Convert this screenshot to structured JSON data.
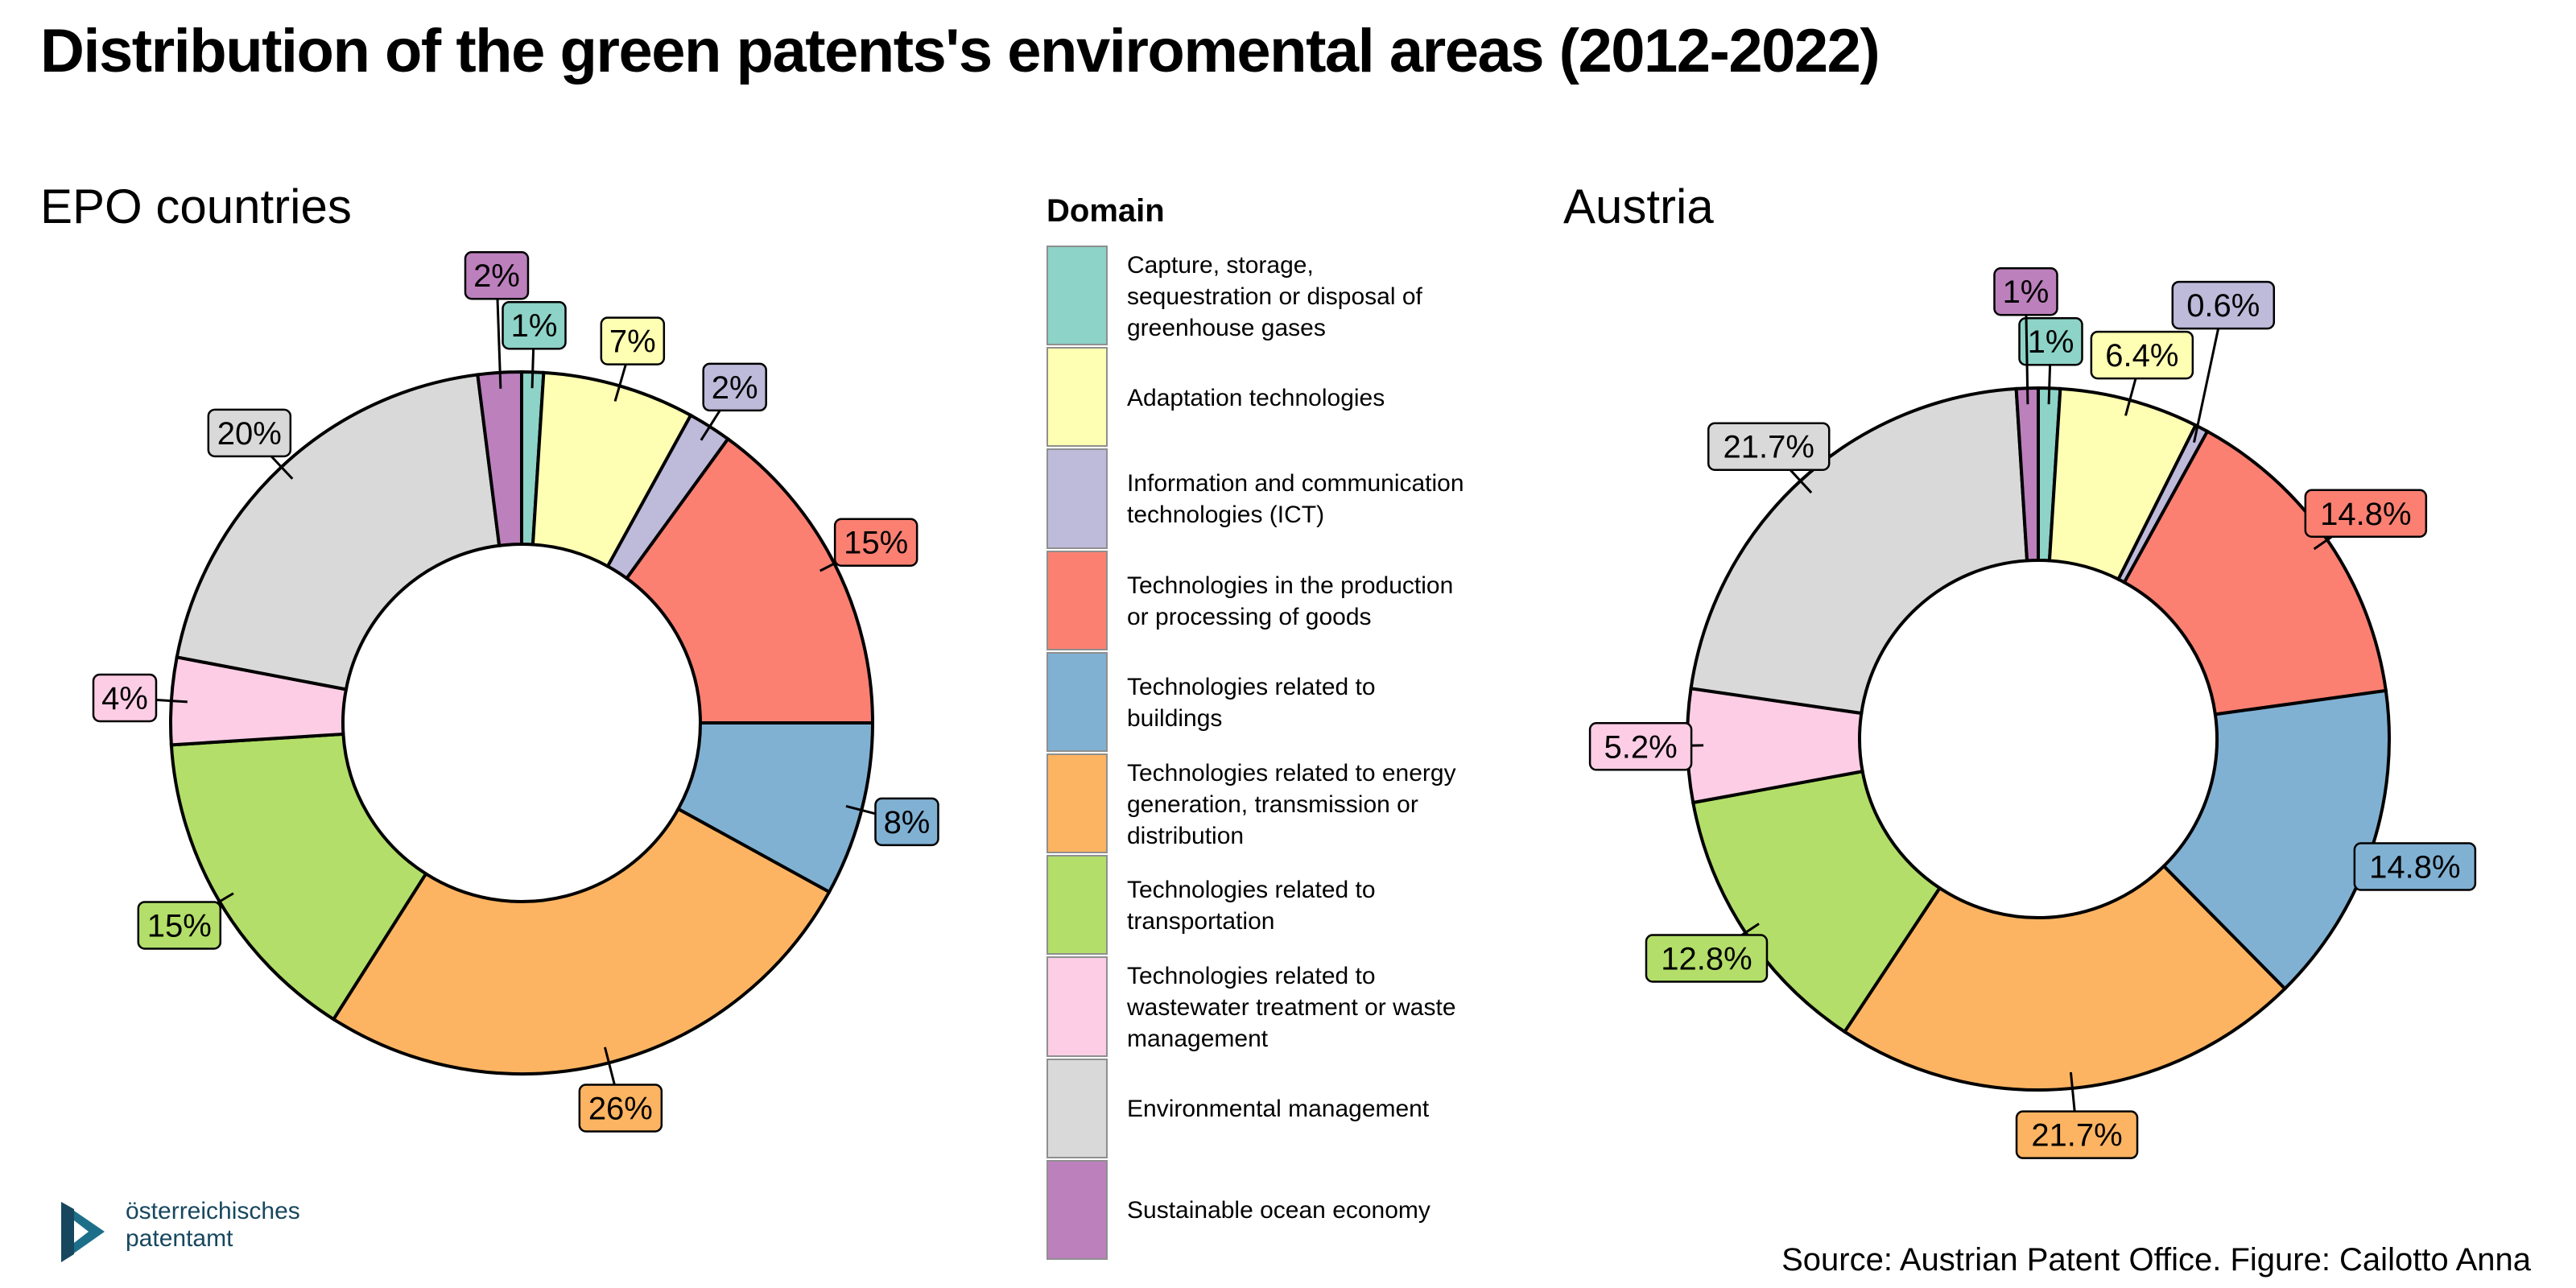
{
  "title": "Distribution of the green patents's enviromental areas (2012-2022)",
  "legend_title": "Domain",
  "source": "Source: Austrian Patent Office. Figure: Cailotto Anna",
  "logo": {
    "text": "österreichisches\npatentamt",
    "icon": "patent-office-logo-icon"
  },
  "categories": [
    "Capture, storage, sequestration or disposal of greenhouse gases",
    "Adaptation technologies",
    "Information and communication technologies (ICT)",
    "Technologies in the production or processing of goods",
    "Technologies related to buildings",
    "Technologies related to energy generation, transmission or distribution",
    "Technologies related to transportation",
    "Technologies related to wastewater treatment or waste management",
    "Environmental management",
    "Sustainable ocean economy"
  ],
  "legend_labels": [
    "Capture, storage,\nsequestration or disposal of\ngreenhouse gases",
    "Adaptation technologies",
    "Information and communication\ntechnologies (ICT)",
    "Technologies in the production\nor processing of goods",
    "Technologies related to\nbuildings",
    "Technologies related to energy\ngeneration, transmission or\ndistribution",
    "Technologies related to\ntransportation",
    "Technologies related to\nwastewater treatment or waste\nmanagement",
    "Environmental management",
    "Sustainable ocean economy"
  ],
  "colors": [
    "#8dd3c7",
    "#ffffb3",
    "#bebada",
    "#fb8072",
    "#80b1d3",
    "#fdb462",
    "#b3de69",
    "#fccde5",
    "#d9d9d9",
    "#bc80bd"
  ],
  "chart_data": [
    {
      "type": "pie",
      "variant": "donut",
      "title": "EPO countries",
      "values": [
        1,
        7,
        2,
        15,
        8,
        26,
        15,
        4,
        20,
        2
      ],
      "labels": [
        "1%",
        "7%",
        "2%",
        "15%",
        "8%",
        "26%",
        "15%",
        "4%",
        "20%",
        "2%"
      ]
    },
    {
      "type": "pie",
      "variant": "donut",
      "title": "Austria",
      "values": [
        1,
        6.4,
        0.6,
        14.8,
        14.8,
        21.7,
        12.8,
        5.2,
        21.7,
        1
      ],
      "labels": [
        "1%",
        "6.4%",
        "0.6%",
        "14.8%",
        "14.8%",
        "21.7%",
        "12.8%",
        "5.2%",
        "21.7%",
        "1%"
      ]
    }
  ]
}
